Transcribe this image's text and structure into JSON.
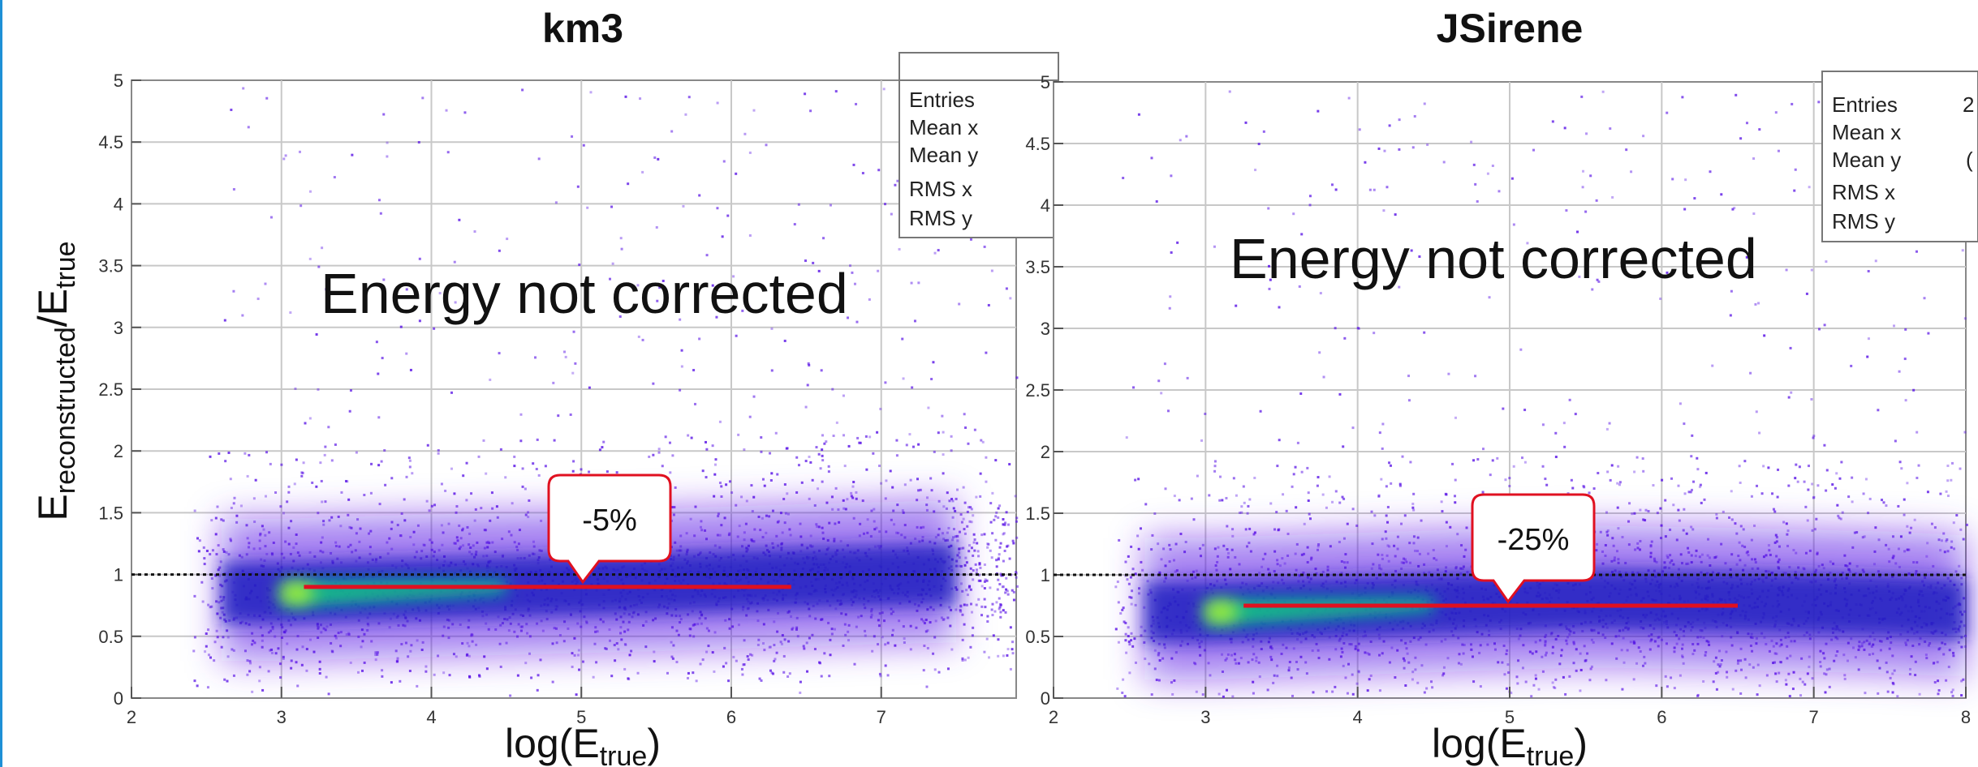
{
  "y_axis_title": {
    "main": "E",
    "sub1": "reconstructed",
    "mid": "/E",
    "sub2": "true"
  },
  "chart_data": [
    {
      "type": "heatmap",
      "title": "km3",
      "xlabel": {
        "main": "log(E",
        "sub": "true",
        "close": ")"
      },
      "xlim": [
        2,
        7.9
      ],
      "ylim": [
        0,
        5
      ],
      "x_ticks": [
        "2",
        "3",
        "4",
        "5",
        "6",
        "7"
      ],
      "y_ticks": [
        "0",
        "0.5",
        "1",
        "1.5",
        "2",
        "2.5",
        "3",
        "3.5",
        "4",
        "4.5",
        "5"
      ],
      "grid": true,
      "annotation": "Energy not corrected",
      "reference_line_y": 1,
      "fit_line": {
        "x": [
          3.15,
          6.4
        ],
        "y": [
          0.9,
          0.9
        ],
        "color": "#e01020"
      },
      "callout": {
        "label": "-5%",
        "x": 5.0,
        "y": 0.9
      },
      "density_ridge": {
        "x": [
          2.6,
          3.0,
          3.5,
          4.5,
          5.5,
          6.5,
          7.5
        ],
        "y": [
          0.85,
          0.85,
          0.87,
          0.9,
          0.93,
          0.97,
          1.0
        ]
      },
      "stats_box": {
        "entries": [
          "Entries",
          "Mean x",
          "Mean y",
          "RMS x",
          "RMS y"
        ]
      },
      "colors": {
        "low": "#5a14e6",
        "mid": "#2020c0",
        "high": "#10d080",
        "peak": "#d0ff20"
      }
    },
    {
      "type": "heatmap",
      "title": "JSirene",
      "xlabel": {
        "main": "log(E",
        "sub": "true",
        "close": ")"
      },
      "xlim": [
        2,
        8
      ],
      "ylim": [
        0,
        5
      ],
      "x_ticks": [
        "2",
        "3",
        "4",
        "5",
        "6",
        "7",
        "8"
      ],
      "y_ticks": [
        "0",
        "0.5",
        "1",
        "1.5",
        "2",
        "2.5",
        "3",
        "3.5",
        "4",
        "4.5",
        "5"
      ],
      "grid": true,
      "annotation": "Energy not corrected",
      "reference_line_y": 1,
      "fit_line": {
        "x": [
          3.25,
          6.5
        ],
        "y": [
          0.75,
          0.75
        ],
        "color": "#e01020"
      },
      "callout": {
        "label": "-25%",
        "x": 5.0,
        "y": 0.75
      },
      "density_ridge": {
        "x": [
          2.6,
          3.0,
          3.5,
          4.5,
          5.5,
          6.5,
          7.5,
          8.0
        ],
        "y": [
          0.7,
          0.7,
          0.72,
          0.76,
          0.8,
          0.78,
          0.75,
          0.72
        ]
      },
      "stats_box": {
        "entries": [
          "Entries",
          "Mean x",
          "Mean y",
          "RMS x",
          "RMS y"
        ],
        "partial": [
          "2",
          "(",
          "",
          "",
          ""
        ]
      },
      "colors": {
        "low": "#5a14e6",
        "mid": "#2020c0",
        "high": "#10d080",
        "peak": "#d0ff20"
      }
    }
  ]
}
